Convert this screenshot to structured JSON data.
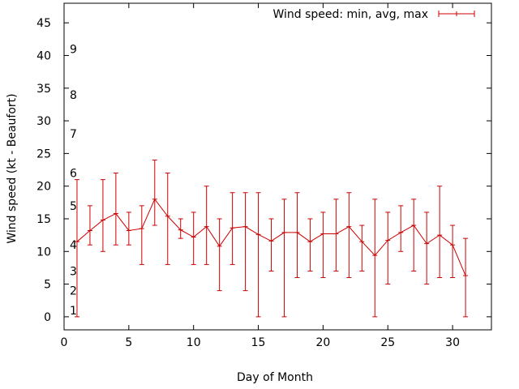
{
  "chart_data": {
    "type": "line",
    "title": "",
    "xlabel": "Day of Month",
    "ylabel": "Wind speed (kt - Beaufort)",
    "xlim": [
      0,
      33
    ],
    "ylim": [
      -2,
      48
    ],
    "x_ticks": [
      0,
      5,
      10,
      15,
      20,
      25,
      30
    ],
    "y_ticks": [
      0,
      5,
      10,
      15,
      20,
      25,
      30,
      35,
      40,
      45
    ],
    "grid": false,
    "legend": {
      "label": "Wind speed: min, avg, max",
      "position": "top-right"
    },
    "series_color": "#cc0000",
    "beaufort_labels": [
      {
        "label": "1",
        "y": 1
      },
      {
        "label": "2",
        "y": 4
      },
      {
        "label": "3",
        "y": 7
      },
      {
        "label": "4",
        "y": 11
      },
      {
        "label": "5",
        "y": 17
      },
      {
        "label": "6",
        "y": 22
      },
      {
        "label": "7",
        "y": 28
      },
      {
        "label": "8",
        "y": 34
      },
      {
        "label": "9",
        "y": 41
      }
    ],
    "series": [
      {
        "name": "Wind speed: min, avg, max",
        "x": [
          1,
          2,
          3,
          4,
          5,
          6,
          7,
          8,
          9,
          10,
          11,
          12,
          13,
          14,
          15,
          16,
          17,
          18,
          19,
          20,
          21,
          22,
          23,
          24,
          25,
          26,
          27,
          28,
          29,
          30,
          31
        ],
        "avg": [
          11.5,
          13.2,
          14.8,
          15.8,
          13.2,
          13.5,
          18.0,
          15.4,
          13.3,
          12.2,
          13.8,
          10.8,
          13.6,
          13.8,
          12.6,
          11.6,
          12.9,
          12.9,
          11.5,
          12.7,
          12.7,
          13.8,
          11.5,
          9.4,
          11.7,
          12.9,
          14.0,
          11.2,
          12.5,
          11.0,
          6.3
        ],
        "min": [
          0,
          11,
          10,
          11,
          11,
          8,
          14,
          8,
          12,
          8,
          8,
          4,
          8,
          4,
          0,
          7,
          0,
          6,
          7,
          6,
          7,
          6,
          7,
          0,
          5,
          10,
          7,
          5,
          6,
          6,
          0
        ],
        "max": [
          21,
          17,
          21,
          22,
          16,
          17,
          24,
          22,
          15,
          16,
          20,
          15,
          19,
          19,
          19,
          15,
          18,
          19,
          15,
          16,
          18,
          19,
          14,
          18,
          16,
          17,
          18,
          16,
          20,
          14,
          12
        ]
      }
    ]
  }
}
